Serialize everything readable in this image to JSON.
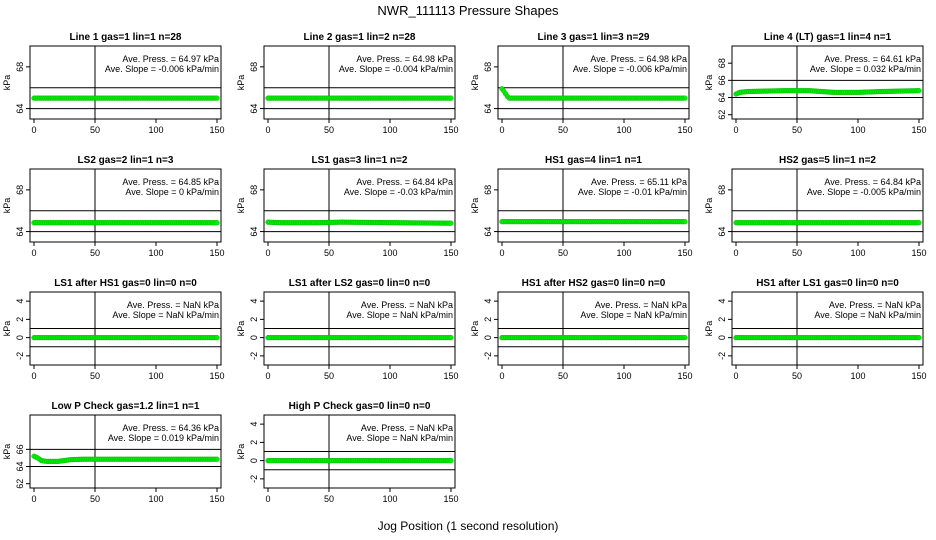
{
  "page": {
    "title": "NWR_111113  Pressure Shapes",
    "xlabel": "Jog Position (1 second resolution)"
  },
  "chart_data": [
    {
      "type": "scatter",
      "title": "Line 1 gas=1 lin=1 n=28",
      "ylabel": "kPa",
      "xlim": [
        0,
        150
      ],
      "ylim": [
        63,
        70
      ],
      "yticks": [
        64,
        68
      ],
      "xticks": [
        0,
        50,
        100,
        150
      ],
      "hlines": [
        64,
        66
      ],
      "vline": 50,
      "annotation_press": "Ave. Press. = 64.97  kPa",
      "annotation_slope": "Ave. Slope = -0.006  kPa/min",
      "series": [
        {
          "color": "#00ee00",
          "x": [
            0,
            150
          ],
          "y": [
            65.0,
            65.0
          ]
        }
      ]
    },
    {
      "type": "scatter",
      "title": "Line 2 gas=1 lin=2 n=28",
      "ylabel": "kPa",
      "xlim": [
        0,
        150
      ],
      "ylim": [
        63,
        70
      ],
      "yticks": [
        64,
        68
      ],
      "xticks": [
        0,
        50,
        100,
        150
      ],
      "hlines": [
        64,
        66
      ],
      "vline": 50,
      "annotation_press": "Ave. Press. = 64.98  kPa",
      "annotation_slope": "Ave. Slope = -0.004  kPa/min",
      "series": [
        {
          "color": "#00ee00",
          "x": [
            0,
            150
          ],
          "y": [
            65.0,
            65.0
          ]
        }
      ]
    },
    {
      "type": "scatter",
      "title": "Line 3 gas=1 lin=3 n=29",
      "ylabel": "kPa",
      "xlim": [
        0,
        150
      ],
      "ylim": [
        63,
        70
      ],
      "yticks": [
        64,
        68
      ],
      "xticks": [
        0,
        50,
        100,
        150
      ],
      "hlines": [
        64,
        66
      ],
      "vline": 50,
      "annotation_press": "Ave. Press. = 64.98  kPa",
      "annotation_slope": "Ave. Slope = -0.006  kPa/min",
      "series": [
        {
          "color": "#00ee00",
          "x": [
            0,
            2,
            4,
            6,
            150
          ],
          "y": [
            65.9,
            65.6,
            65.2,
            65.0,
            65.0
          ]
        }
      ]
    },
    {
      "type": "scatter",
      "title": "Line 4 (LT) gas=1 lin=4 n=1",
      "ylabel": "kPa",
      "xlim": [
        0,
        150
      ],
      "ylim": [
        61.5,
        70
      ],
      "yticks": [
        62,
        64,
        66,
        68
      ],
      "xticks": [
        0,
        50,
        100,
        150
      ],
      "hlines": [
        64,
        66
      ],
      "vline": 50,
      "annotation_press": "Ave. Press. = 64.61  kPa",
      "annotation_slope": "Ave. Slope = 0.032  kPa/min",
      "series": [
        {
          "color": "#00ee00",
          "x": [
            0,
            3,
            10,
            40,
            60,
            80,
            100,
            120,
            150
          ],
          "y": [
            64.4,
            64.6,
            64.7,
            64.8,
            64.8,
            64.6,
            64.6,
            64.7,
            64.8
          ]
        }
      ]
    },
    {
      "type": "scatter",
      "title": "LS2 gas=2 lin=1 n=3",
      "ylabel": "kPa",
      "xlim": [
        0,
        150
      ],
      "ylim": [
        63,
        70
      ],
      "yticks": [
        64,
        68
      ],
      "xticks": [
        0,
        50,
        100,
        150
      ],
      "hlines": [
        64,
        66
      ],
      "vline": 50,
      "annotation_press": "Ave. Press. = 64.85  kPa",
      "annotation_slope": "Ave. Slope = 0  kPa/min",
      "series": [
        {
          "color": "#00ee00",
          "x": [
            0,
            150
          ],
          "y": [
            64.85,
            64.85
          ]
        }
      ]
    },
    {
      "type": "scatter",
      "title": "LS1 gas=3 lin=1 n=2",
      "ylabel": "kPa",
      "xlim": [
        0,
        150
      ],
      "ylim": [
        63,
        70
      ],
      "yticks": [
        64,
        68
      ],
      "xticks": [
        0,
        50,
        100,
        150
      ],
      "hlines": [
        64,
        66
      ],
      "vline": 50,
      "annotation_press": "Ave. Press. = 64.84  kPa",
      "annotation_slope": "Ave. Slope = -0.03  kPa/min",
      "series": [
        {
          "color": "#00ee00",
          "x": [
            0,
            10,
            40,
            60,
            150
          ],
          "y": [
            64.9,
            64.85,
            64.85,
            64.9,
            64.8
          ]
        }
      ]
    },
    {
      "type": "scatter",
      "title": "HS1 gas=4 lin=1 n=1",
      "ylabel": "kPa",
      "xlim": [
        0,
        150
      ],
      "ylim": [
        63,
        70
      ],
      "yticks": [
        64,
        68
      ],
      "xticks": [
        0,
        50,
        100,
        150
      ],
      "hlines": [
        64,
        66
      ],
      "vline": 50,
      "annotation_press": "Ave. Press. = 65.11  kPa",
      "annotation_slope": "Ave. Slope = -0.01  kPa/min",
      "series": [
        {
          "color": "#00ee00",
          "x": [
            0,
            150
          ],
          "y": [
            64.95,
            64.95
          ]
        }
      ]
    },
    {
      "type": "scatter",
      "title": "HS2 gas=5 lin=1 n=2",
      "ylabel": "kPa",
      "xlim": [
        0,
        150
      ],
      "ylim": [
        63,
        70
      ],
      "yticks": [
        64,
        68
      ],
      "xticks": [
        0,
        50,
        100,
        150
      ],
      "hlines": [
        64,
        66
      ],
      "vline": 50,
      "annotation_press": "Ave. Press. = 64.84  kPa",
      "annotation_slope": "Ave. Slope = -0.005  kPa/min",
      "series": [
        {
          "color": "#00ee00",
          "x": [
            0,
            150
          ],
          "y": [
            64.85,
            64.85
          ]
        }
      ]
    },
    {
      "type": "scatter",
      "title": "LS1 after HS1 gas=0 lin=0 n=0",
      "ylabel": "kPa",
      "xlim": [
        0,
        150
      ],
      "ylim": [
        -3,
        5
      ],
      "yticks": [
        -2,
        0,
        2,
        4
      ],
      "xticks": [
        0,
        50,
        100,
        150
      ],
      "hlines": [
        -1,
        1
      ],
      "vline": 50,
      "annotation_press": "Ave. Press. =  NaN  kPa",
      "annotation_slope": "Ave. Slope =  NaN  kPa/min",
      "series": [
        {
          "color": "#00ee00",
          "x": [
            0,
            150
          ],
          "y": [
            0,
            0
          ]
        }
      ]
    },
    {
      "type": "scatter",
      "title": "LS1 after LS2 gas=0 lin=0 n=0",
      "ylabel": "kPa",
      "xlim": [
        0,
        150
      ],
      "ylim": [
        -3,
        5
      ],
      "yticks": [
        -2,
        0,
        2,
        4
      ],
      "xticks": [
        0,
        50,
        100,
        150
      ],
      "hlines": [
        -1,
        1
      ],
      "vline": 50,
      "annotation_press": "Ave. Press. =  NaN  kPa",
      "annotation_slope": "Ave. Slope =  NaN  kPa/min",
      "series": [
        {
          "color": "#00ee00",
          "x": [
            0,
            150
          ],
          "y": [
            0,
            0
          ]
        }
      ]
    },
    {
      "type": "scatter",
      "title": "HS1 after HS2 gas=0 lin=0 n=0",
      "ylabel": "kPa",
      "xlim": [
        0,
        150
      ],
      "ylim": [
        -3,
        5
      ],
      "yticks": [
        -2,
        0,
        2,
        4
      ],
      "xticks": [
        0,
        50,
        100,
        150
      ],
      "hlines": [
        -1,
        1
      ],
      "vline": 50,
      "annotation_press": "Ave. Press. =  NaN  kPa",
      "annotation_slope": "Ave. Slope =  NaN  kPa/min",
      "series": [
        {
          "color": "#00ee00",
          "x": [
            0,
            150
          ],
          "y": [
            0,
            0
          ]
        }
      ]
    },
    {
      "type": "scatter",
      "title": "HS1 after LS1 gas=0 lin=0 n=0",
      "ylabel": "kPa",
      "xlim": [
        0,
        150
      ],
      "ylim": [
        -3,
        5
      ],
      "yticks": [
        -2,
        0,
        2,
        4
      ],
      "xticks": [
        0,
        50,
        100,
        150
      ],
      "hlines": [
        -1,
        1
      ],
      "vline": 50,
      "annotation_press": "Ave. Press. =  NaN  kPa",
      "annotation_slope": "Ave. Slope =  NaN  kPa/min",
      "series": [
        {
          "color": "#00ee00",
          "x": [
            0,
            150
          ],
          "y": [
            0,
            0
          ]
        }
      ]
    },
    {
      "type": "scatter",
      "title": "Low P Check gas=1.2 lin=1 n=1",
      "ylabel": "kPa",
      "xlim": [
        0,
        150
      ],
      "ylim": [
        61.5,
        70
      ],
      "yticks": [
        62,
        64,
        66
      ],
      "xticks": [
        0,
        50,
        100,
        150
      ],
      "hlines": [
        64,
        66
      ],
      "vline": 50,
      "annotation_press": "Ave. Press. = 64.36  kPa",
      "annotation_slope": "Ave. Slope = 0.019  kPa/min",
      "series": [
        {
          "color": "#00ee00",
          "x": [
            0,
            3,
            6,
            10,
            20,
            30,
            40,
            150
          ],
          "y": [
            65.2,
            65.0,
            64.7,
            64.6,
            64.6,
            64.8,
            64.85,
            64.85
          ]
        }
      ]
    },
    {
      "type": "scatter",
      "title": "High P Check gas=0 lin=0 n=0",
      "ylabel": "kPa",
      "xlim": [
        0,
        150
      ],
      "ylim": [
        -3,
        5
      ],
      "yticks": [
        -2,
        0,
        2,
        4
      ],
      "xticks": [
        0,
        50,
        100,
        150
      ],
      "hlines": [
        -1,
        1
      ],
      "vline": 50,
      "annotation_press": "Ave. Press. =  NaN  kPa",
      "annotation_slope": "Ave. Slope =  NaN  kPa/min",
      "series": [
        {
          "color": "#00ee00",
          "x": [
            0,
            150
          ],
          "y": [
            0,
            0
          ]
        }
      ]
    }
  ]
}
